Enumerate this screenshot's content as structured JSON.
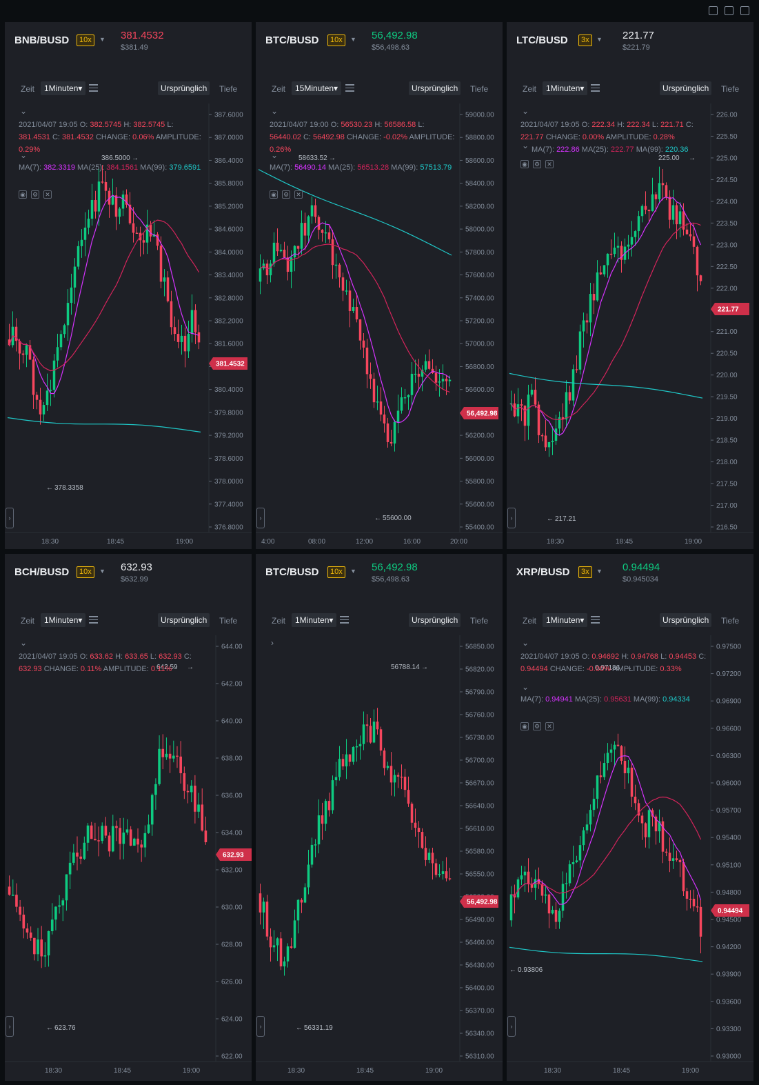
{
  "toolbar": {
    "icons": [
      "grid-layout-icon",
      "popout-icon",
      "fullscreen-icon"
    ]
  },
  "colors": {
    "up": "#0ecb81",
    "down": "#f6465d",
    "ma7": "#d633ff",
    "ma25": "#d4245b",
    "ma99": "#1fc7c7",
    "lever": "#f0b90b"
  },
  "common": {
    "zeit": "Zeit",
    "original": "Ursprünglich",
    "depth": "Tiefe"
  },
  "panels": [
    {
      "symbol": "BNB/BUSD",
      "leverage": "10x",
      "price": "381.4532",
      "price_dir": "down",
      "usd": "$381.49",
      "interval": "1Minuten",
      "ohlc": [
        "2021/04/07 19:05",
        "382.5745",
        "382.5745",
        "381.4531",
        "381.4532",
        "0.06%",
        "0.29%"
      ],
      "ma": [
        "382.3319",
        "384.1561",
        "379.6591"
      ],
      "y_ticks": [
        "387.6000",
        "387.0000",
        "386.4000",
        "385.8000",
        "385.2000",
        "384.6000",
        "384.0000",
        "383.4000",
        "382.8000",
        "382.2000",
        "381.6000",
        "381.0000",
        "380.4000",
        "379.8000",
        "379.2000",
        "378.6000",
        "378.0000",
        "377.4000",
        "376.8000"
      ],
      "x_ticks": [
        "18:30",
        "18:45",
        "19:00"
      ],
      "high_label": "386.5000",
      "low_label": "378.3358"
    },
    {
      "symbol": "BTC/BUSD",
      "leverage": "10x",
      "price": "56,492.98",
      "price_dir": "up",
      "usd": "$56,498.63",
      "interval": "15Minuten",
      "ohlc": [
        "2021/04/07 19:00",
        "56530.23",
        "56586.58",
        "56440.02",
        "56492.98",
        "-0.02%",
        "0.26%"
      ],
      "ma": [
        "56490.14",
        "56513.28",
        "57513.79"
      ],
      "y_ticks": [
        "59000.00",
        "58800.00",
        "58600.00",
        "58400.00",
        "58200.00",
        "58000.00",
        "57800.00",
        "57600.00",
        "57400.00",
        "57200.00",
        "57000.00",
        "56800.00",
        "56600.00",
        "56400.00",
        "56200.00",
        "56000.00",
        "55800.00",
        "55600.00",
        "55400.00"
      ],
      "x_ticks": [
        "4:00",
        "08:00",
        "12:00",
        "16:00",
        "20:00"
      ],
      "high_label": "58633.52",
      "low_label": "55600.00"
    },
    {
      "symbol": "LTC/BUSD",
      "leverage": "3x",
      "price": "221.77",
      "price_dir": "neutral",
      "usd": "$221.79",
      "interval": "1Minuten",
      "ohlc": [
        "2021/04/07 19:05",
        "222.34",
        "222.34",
        "221.71",
        "221.77",
        "0.00%",
        "0.28%"
      ],
      "ma": [
        "222.86",
        "222.77",
        "220.36"
      ],
      "y_ticks": [
        "226.00",
        "225.50",
        "225.00",
        "224.50",
        "224.00",
        "223.50",
        "223.00",
        "222.50",
        "222.00",
        "221.50",
        "221.00",
        "220.50",
        "220.00",
        "219.50",
        "219.00",
        "218.50",
        "218.00",
        "217.50",
        "217.00",
        "216.50"
      ],
      "x_ticks": [
        "18:30",
        "18:45",
        "19:00"
      ],
      "high_label": "225.00",
      "low_label": "217.21"
    },
    {
      "symbol": "BCH/BUSD",
      "leverage": "10x",
      "price": "632.93",
      "price_dir": "neutral",
      "usd": "$632.99",
      "interval": "1Minuten",
      "ohlc": [
        "2021/04/07 19:05",
        "633.62",
        "633.65",
        "632.93",
        "632.93",
        "0.11%",
        "0.11%"
      ],
      "y_ticks": [
        "644.00",
        "642.00",
        "640.00",
        "638.00",
        "636.00",
        "634.00",
        "632.00",
        "630.00",
        "628.00",
        "626.00",
        "624.00",
        "622.00"
      ],
      "x_ticks": [
        "18:30",
        "18:45",
        "19:00"
      ],
      "high_label": "642.59",
      "low_label": "623.76"
    },
    {
      "symbol": "BTC/BUSD",
      "leverage": "10x",
      "price": "56,492.98",
      "price_dir": "up",
      "usd": "$56,498.63",
      "interval": "1Minuten",
      "y_ticks": [
        "56850.00",
        "56820.00",
        "56790.00",
        "56760.00",
        "56730.00",
        "56700.00",
        "56670.00",
        "56640.00",
        "56610.00",
        "56580.00",
        "56550.00",
        "56520.00",
        "56490.00",
        "56460.00",
        "56430.00",
        "56400.00",
        "56370.00",
        "56340.00",
        "56310.00"
      ],
      "x_ticks": [
        "18:30",
        "18:45",
        "19:00"
      ],
      "high_label": "56788.14",
      "low_label": "56331.19"
    },
    {
      "symbol": "XRP/BUSD",
      "leverage": "3x",
      "price": "0.94494",
      "price_dir": "up",
      "usd": "$0.945034",
      "interval": "1Minuten",
      "ohlc": [
        "2021/04/07 19:05",
        "0.94692",
        "0.94768",
        "0.94453",
        "0.94494",
        "-0.00%",
        "0.33%"
      ],
      "ma": [
        "0.94941",
        "0.95631",
        "0.94334"
      ],
      "y_ticks": [
        "0.97500",
        "0.97200",
        "0.96900",
        "0.96600",
        "0.96300",
        "0.96000",
        "0.95700",
        "0.95400",
        "0.95100",
        "0.94800",
        "0.94500",
        "0.94200",
        "0.93900",
        "0.93600",
        "0.93300",
        "0.93000"
      ],
      "x_ticks": [
        "18:30",
        "18:45",
        "19:00"
      ],
      "high_label": "0.97186",
      "low_label": "0.93806"
    }
  ],
  "labels": {
    "O": "O:",
    "H": "H:",
    "L": "L:",
    "C": "C:",
    "change": "CHANGE:",
    "amp": "AMPLITUDE:",
    "ma7": "MA(7):",
    "ma25": "MA(25):",
    "ma99": "MA(99):"
  }
}
